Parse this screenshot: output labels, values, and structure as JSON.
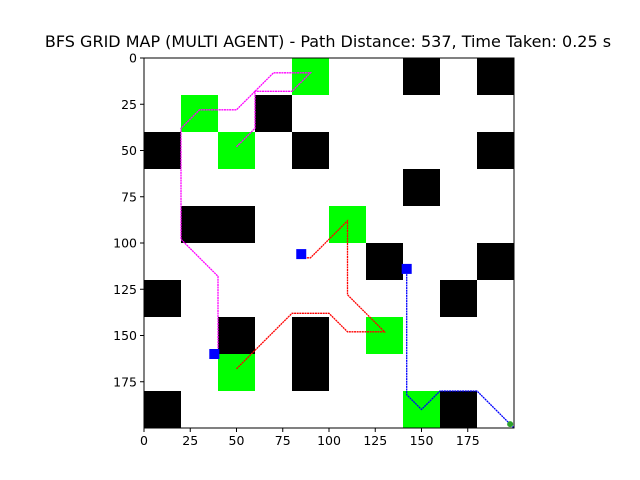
{
  "chart_data": {
    "type": "grid-map",
    "title": "BFS GRID MAP (MULTI AGENT) - Path Distance: 537, Time Taken: 0.25 s",
    "grid_size": [
      200,
      200
    ],
    "cell_size": 20,
    "xlim": [
      0,
      200
    ],
    "ylim": [
      200,
      0
    ],
    "xticks": [
      0,
      25,
      50,
      75,
      100,
      125,
      150,
      175
    ],
    "yticks": [
      0,
      25,
      50,
      75,
      100,
      125,
      150,
      175
    ],
    "grid": false,
    "colors": {
      "obstacle": "#000000",
      "goal": "#00ff00",
      "start": "#0000ff",
      "end_dot": "#2ca02c"
    },
    "obstacles": [
      [
        140,
        0
      ],
      [
        180,
        0
      ],
      [
        60,
        20
      ],
      [
        0,
        40
      ],
      [
        80,
        40
      ],
      [
        180,
        40
      ],
      [
        140,
        60
      ],
      [
        20,
        80
      ],
      [
        40,
        80
      ],
      [
        120,
        100
      ],
      [
        180,
        100
      ],
      [
        0,
        120
      ],
      [
        160,
        120
      ],
      [
        40,
        140
      ],
      [
        80,
        140
      ],
      [
        80,
        160
      ],
      [
        0,
        180
      ],
      [
        160,
        180
      ]
    ],
    "goals": [
      [
        80,
        0
      ],
      [
        20,
        20
      ],
      [
        40,
        40
      ],
      [
        100,
        80
      ],
      [
        120,
        140
      ],
      [
        40,
        160
      ],
      [
        140,
        180
      ]
    ],
    "starts": [
      [
        85,
        106
      ],
      [
        142,
        114
      ],
      [
        38,
        160
      ]
    ],
    "end_points": [
      [
        199,
        199
      ]
    ],
    "series": [
      {
        "color": "#ff00ff",
        "points": [
          [
            50,
            48
          ],
          [
            60,
            38
          ],
          [
            60,
            18
          ],
          [
            80,
            18
          ],
          [
            90,
            8
          ],
          [
            70,
            8
          ],
          [
            50,
            28
          ],
          [
            30,
            28
          ],
          [
            20,
            38
          ],
          [
            20,
            98
          ],
          [
            40,
            118
          ],
          [
            40,
            158
          ]
        ]
      },
      {
        "color": "#ff0000",
        "points": [
          [
            50,
            168
          ],
          [
            80,
            138
          ],
          [
            100,
            138
          ],
          [
            110,
            148
          ],
          [
            130,
            148
          ],
          [
            110,
            128
          ],
          [
            110,
            88
          ],
          [
            90,
            108
          ],
          [
            85,
            108
          ]
        ]
      },
      {
        "color": "#0000ff",
        "points": [
          [
            142,
            114
          ],
          [
            142,
            182
          ],
          [
            150,
            190
          ],
          [
            160,
            180
          ],
          [
            180,
            180
          ],
          [
            200,
            200
          ]
        ]
      }
    ]
  }
}
